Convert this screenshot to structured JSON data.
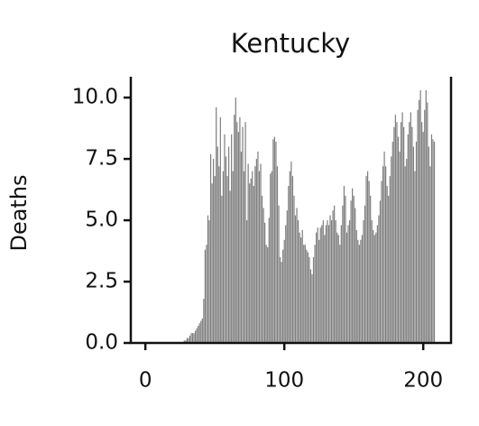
{
  "chart_data": {
    "type": "bar",
    "title": "Kentucky",
    "ylabel": "Deaths",
    "color": "#808080",
    "xlim": [
      -10.5,
      220
    ],
    "ylim": [
      0,
      10.85
    ],
    "xticks": [
      0,
      100,
      200
    ],
    "yticks": [
      {
        "value": 0,
        "label": "0.0"
      },
      {
        "value": 2.5,
        "label": "2.5"
      },
      {
        "value": 5,
        "label": "5.0"
      },
      {
        "value": 7.5,
        "label": "7.5"
      },
      {
        "value": 10,
        "label": "10.0"
      }
    ],
    "x": [
      0,
      1,
      2,
      3,
      4,
      5,
      6,
      7,
      8,
      9,
      10,
      11,
      12,
      13,
      14,
      15,
      16,
      17,
      18,
      19,
      20,
      21,
      22,
      23,
      24,
      25,
      26,
      27,
      28,
      29,
      30,
      31,
      32,
      33,
      34,
      35,
      36,
      37,
      38,
      39,
      40,
      41,
      42,
      43,
      44,
      45,
      46,
      47,
      48,
      49,
      50,
      51,
      52,
      53,
      54,
      55,
      56,
      57,
      58,
      59,
      60,
      61,
      62,
      63,
      64,
      65,
      66,
      67,
      68,
      69,
      70,
      71,
      72,
      73,
      74,
      75,
      76,
      77,
      78,
      79,
      80,
      81,
      82,
      83,
      84,
      85,
      86,
      87,
      88,
      89,
      90,
      91,
      92,
      93,
      94,
      95,
      96,
      97,
      98,
      99,
      100,
      101,
      102,
      103,
      104,
      105,
      106,
      107,
      108,
      109,
      110,
      111,
      112,
      113,
      114,
      115,
      116,
      117,
      118,
      119,
      120,
      121,
      122,
      123,
      124,
      125,
      126,
      127,
      128,
      129,
      130,
      131,
      132,
      133,
      134,
      135,
      136,
      137,
      138,
      139,
      140,
      141,
      142,
      143,
      144,
      145,
      146,
      147,
      148,
      149,
      150,
      151,
      152,
      153,
      154,
      155,
      156,
      157,
      158,
      159,
      160,
      161,
      162,
      163,
      164,
      165,
      166,
      167,
      168,
      169,
      170,
      171,
      172,
      173,
      174,
      175,
      176,
      177,
      178,
      179,
      180,
      181,
      182,
      183,
      184,
      185,
      186,
      187,
      188,
      189,
      190,
      191,
      192,
      193,
      194,
      195,
      196,
      197,
      198,
      199,
      200,
      201,
      202,
      203,
      204,
      205,
      206,
      207,
      208
    ],
    "values": [
      0,
      0,
      0,
      0,
      0,
      0,
      0,
      0,
      0,
      0,
      0,
      0,
      0,
      0,
      0,
      0,
      0,
      0,
      0,
      0,
      0,
      0,
      0,
      0,
      0,
      0,
      0,
      0,
      0.1,
      0.1,
      0.2,
      0.2,
      0.3,
      0.4,
      0.4,
      0.4,
      0.5,
      0.6,
      0.7,
      0.8,
      0.9,
      1.0,
      1.8,
      3.8,
      4.0,
      5.2,
      5.0,
      7.7,
      6.5,
      7.5,
      6.8,
      9.6,
      8.0,
      7.2,
      9.2,
      6.0,
      7.0,
      8.5,
      7.6,
      6.8,
      8.0,
      6.2,
      8.5,
      7.0,
      9.3,
      10.0,
      9.0,
      8.6,
      9.2,
      7.8,
      8.8,
      7.0,
      9.0,
      5.0,
      7.3,
      6.5,
      6.7,
      7.0,
      6.4,
      7.2,
      7.5,
      7.8,
      7.0,
      7.3,
      6.0,
      5.5,
      4.9,
      4.0,
      3.9,
      5.1,
      6.9,
      7.0,
      8.3,
      8.4,
      8.2,
      7.2,
      5.6,
      3.5,
      3.3,
      3.8,
      4.2,
      4.8,
      5.4,
      6.4,
      7.0,
      7.4,
      6.8,
      6.0,
      5.2,
      5.5,
      5.0,
      4.5,
      4.3,
      4.6,
      4.0,
      4.0,
      3.8,
      3.7,
      3.5,
      3.0,
      2.8,
      3.5,
      4.0,
      4.5,
      4.7,
      4.2,
      4.7,
      4.8,
      5.0,
      4.4,
      4.8,
      5.0,
      4.8,
      5.2,
      5.0,
      5.4,
      5.6,
      5.0,
      4.5,
      4.4,
      4.0,
      4.8,
      5.6,
      6.4,
      6.0,
      4.5,
      4.8,
      5.0,
      5.8,
      6.3,
      6.0,
      5.5,
      4.6,
      4.2,
      4.0,
      4.2,
      4.4,
      5.0,
      5.6,
      6.8,
      7.0,
      6.6,
      6.0,
      5.0,
      4.6,
      4.4,
      4.5,
      4.8,
      5.2,
      5.8,
      6.6,
      7.2,
      7.8,
      7.2,
      6.4,
      6.0,
      6.8,
      7.6,
      8.2,
      8.8,
      9.3,
      9.0,
      8.4,
      7.8,
      9.0,
      9.4,
      8.8,
      7.2,
      7.5,
      8.5,
      9.0,
      9.4,
      8.8,
      8.0,
      7.0,
      8.2,
      9.5,
      9.9,
      10.3,
      9.0,
      8.6,
      9.5,
      10.3,
      9.8,
      8.0,
      7.2,
      8.5,
      8.3,
      8.2
    ]
  }
}
